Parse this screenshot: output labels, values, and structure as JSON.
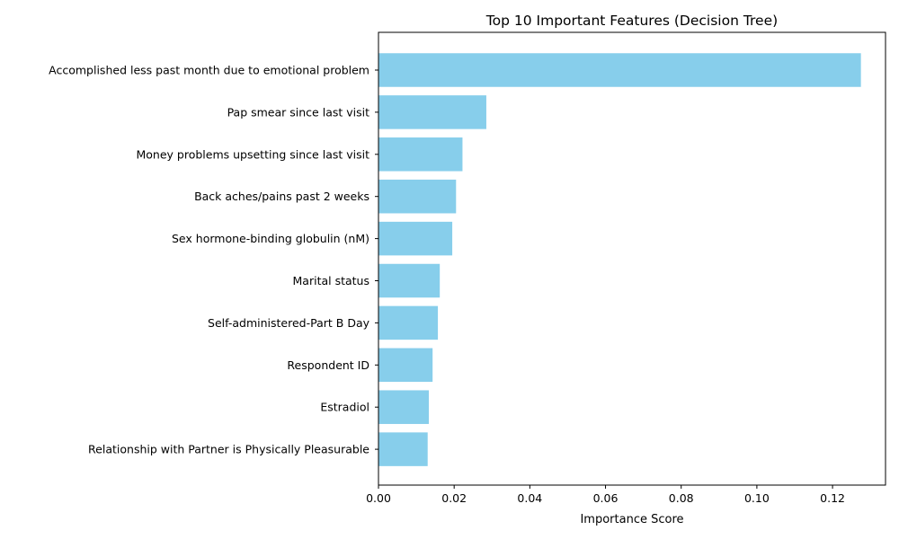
{
  "chart_data": {
    "type": "bar",
    "orientation": "horizontal",
    "title": "Top 10 Important Features (Decision Tree)",
    "xlabel": "Importance Score",
    "ylabel": "",
    "xlim": [
      0,
      0.134
    ],
    "xticks": [
      "0.00",
      "0.02",
      "0.04",
      "0.06",
      "0.08",
      "0.10",
      "0.12"
    ],
    "grid": false,
    "bar_color": "#87CEEB",
    "categories": [
      "Accomplished less past month due to emotional problem",
      "Pap smear since last visit",
      "Money problems upsetting since last visit",
      "Back aches/pains past 2 weeks",
      "Sex hormone-binding globulin (nM)",
      "Marital status",
      "Self-administered-Part B Day",
      "Respondent ID",
      "Estradiol",
      "Relationship with Partner is Physically Pleasurable"
    ],
    "values": [
      0.1275,
      0.0285,
      0.0222,
      0.0205,
      0.0195,
      0.0162,
      0.0157,
      0.0143,
      0.0133,
      0.013
    ]
  }
}
